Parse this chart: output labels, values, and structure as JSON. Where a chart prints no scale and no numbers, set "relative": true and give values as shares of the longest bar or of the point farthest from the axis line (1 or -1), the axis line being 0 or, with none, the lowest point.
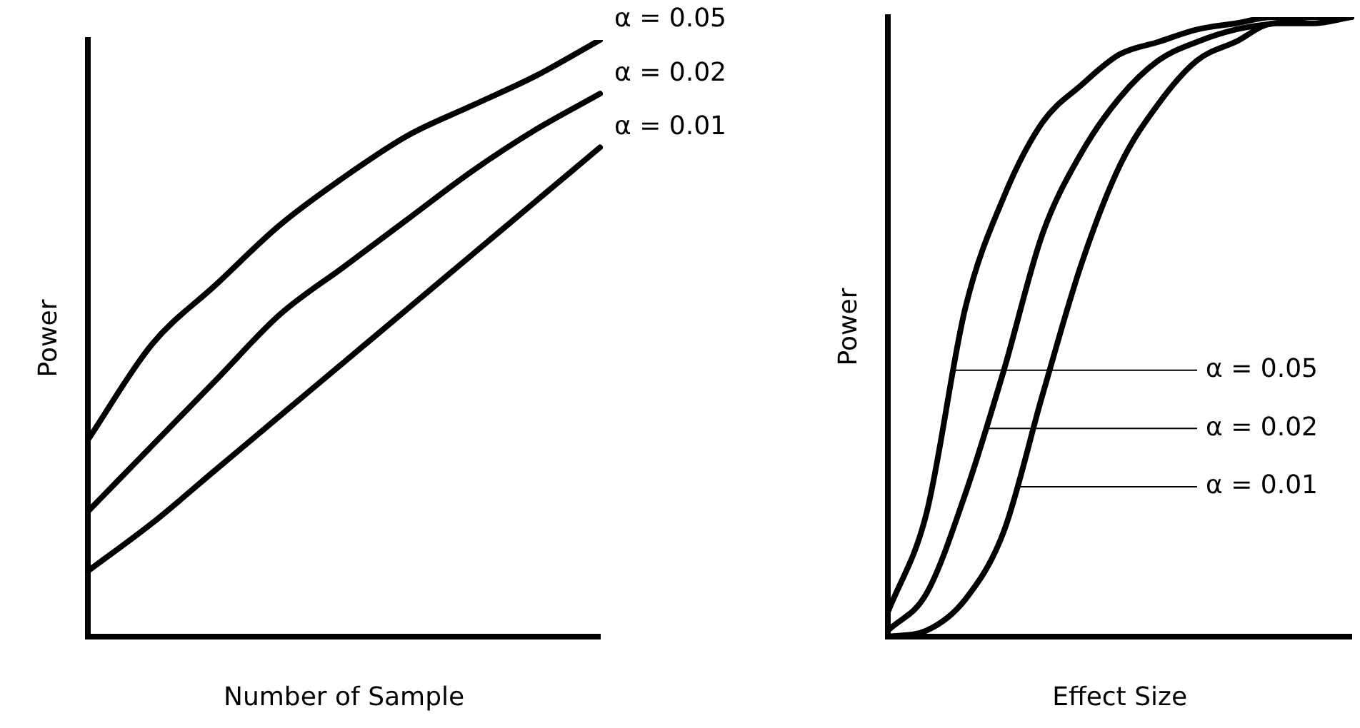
{
  "chart_data": [
    {
      "type": "line",
      "xlabel": "Number of Sample",
      "ylabel": "Power",
      "relative": true,
      "marker": "none",
      "line_style": "solid",
      "categories": [
        null,
        null,
        null,
        null,
        null,
        null,
        null,
        null,
        null
      ],
      "series": [
        {
          "name": "α = 0.05",
          "color": "#000000",
          "values": [
            0.33,
            0.49,
            0.59,
            0.69,
            0.77,
            0.84,
            0.89,
            0.94,
            1
          ]
        },
        {
          "name": "α = 0.02",
          "color": "#000000",
          "values": [
            0.21,
            0.32,
            0.43,
            0.54,
            0.62,
            0.7,
            0.78,
            0.85,
            0.91
          ]
        },
        {
          "name": "α = 0.01",
          "color": "#000000",
          "values": [
            0.11,
            0.19,
            0.28,
            0.37,
            0.46,
            0.55,
            0.64,
            0.73,
            0.82
          ]
        }
      ]
    },
    {
      "type": "line",
      "xlabel": "Effect Size",
      "ylabel": "Power",
      "relative": true,
      "marker": "none",
      "line_style": "solid",
      "annotations": [
        "α = 0.05",
        "α = 0.02",
        "α = 0.01"
      ],
      "categories": [
        null,
        null,
        null,
        null,
        null,
        null,
        null,
        null,
        null,
        null,
        null,
        null,
        null
      ],
      "series": [
        {
          "color": "#000000",
          "values": [
            0.04,
            0.2,
            0.53,
            0.71,
            0.83,
            0.89,
            0.94,
            0.96,
            0.98,
            0.99,
            1,
            1,
            1
          ]
        },
        {
          "color": "#000000",
          "values": [
            0.01,
            0.07,
            0.23,
            0.43,
            0.65,
            0.78,
            0.87,
            0.93,
            0.96,
            0.98,
            0.99,
            1,
            1
          ]
        },
        {
          "color": "#000000",
          "values": [
            0,
            0.01,
            0.06,
            0.17,
            0.39,
            0.6,
            0.76,
            0.86,
            0.93,
            0.96,
            0.99,
            0.99,
            1
          ]
        }
      ]
    }
  ]
}
